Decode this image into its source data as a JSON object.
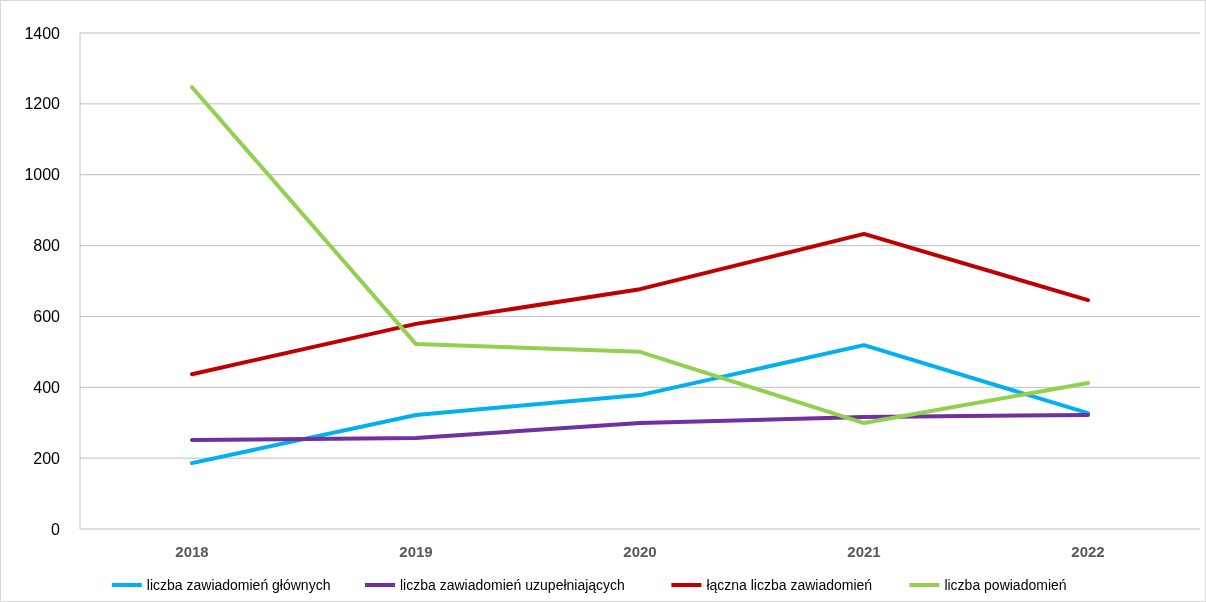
{
  "chart_data": {
    "type": "line",
    "categories": [
      "2018",
      "2019",
      "2020",
      "2021",
      "2022"
    ],
    "series": [
      {
        "name": "liczba zawiadomień głównych",
        "color": "#00b0f0",
        "values": [
          186,
          322,
          378,
          519,
          327
        ]
      },
      {
        "name": "liczba zawiadomień uzupełniających",
        "color": "#7030a0",
        "values": [
          251,
          257,
          299,
          316,
          322
        ]
      },
      {
        "name": "łączna liczba zawiadomień",
        "color": "#c00000",
        "values": [
          437,
          579,
          677,
          833,
          646
        ]
      },
      {
        "name": "liczba powiadomień",
        "color": "#92d050",
        "values": [
          1247,
          522,
          500,
          299,
          412
        ]
      }
    ],
    "ylim": [
      0,
      1400
    ],
    "yticks": [
      0,
      200,
      400,
      600,
      800,
      1000,
      1200,
      1400
    ],
    "grid": "y",
    "legend": "bottom",
    "marker": "none",
    "line_style": "solid"
  }
}
